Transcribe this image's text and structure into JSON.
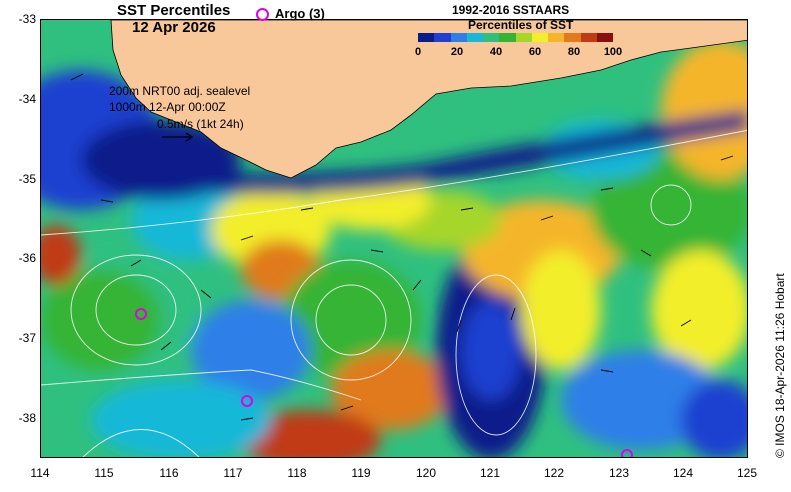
{
  "title": {
    "line1": "SST Percentiles",
    "line2": "12 Apr 2026"
  },
  "argo": {
    "label": "Argo (3)",
    "marker_color": "#e000e0",
    "count": 3
  },
  "legend": {
    "title_line1": "1992-2016 SSTAARS",
    "title_line2": "Percentiles of SST",
    "ticks": [
      "0",
      "20",
      "40",
      "60",
      "80",
      "100"
    ],
    "colors": [
      "#0a1b8a",
      "#1f3fd0",
      "#2f7fe8",
      "#19b8d8",
      "#2fc080",
      "#34b434",
      "#a6d62a",
      "#f3ee2a",
      "#f5b52a",
      "#e07a1a",
      "#c03a14",
      "#8a0f10"
    ]
  },
  "annotations": {
    "line1": "200m  NRT00 adj. sealevel",
    "line2": "1000m 12-Apr 00:00Z",
    "line3": "0.5m/s (1kt 24h)"
  },
  "axes": {
    "y_ticks": [
      "-33",
      "-34",
      "-35",
      "-36",
      "-37",
      "-38"
    ],
    "x_ticks": [
      "114",
      "115",
      "116",
      "117",
      "118",
      "119",
      "120",
      "121",
      "122",
      "123",
      "124",
      "125"
    ],
    "lon_range": [
      114,
      125
    ],
    "lat_range": [
      -38.5,
      -33
    ]
  },
  "argo_floats": [
    {
      "lon": 115.55,
      "lat": -36.68
    },
    {
      "lon": 117.2,
      "lat": -37.77
    },
    {
      "lon": 123.1,
      "lat": -38.45
    }
  ],
  "credit": "© IMOS 18-Apr-2026 11:26 Hobart",
  "colors": {
    "land": "#f8c79a",
    "coast": "#000000",
    "contour": "#ffffff"
  }
}
